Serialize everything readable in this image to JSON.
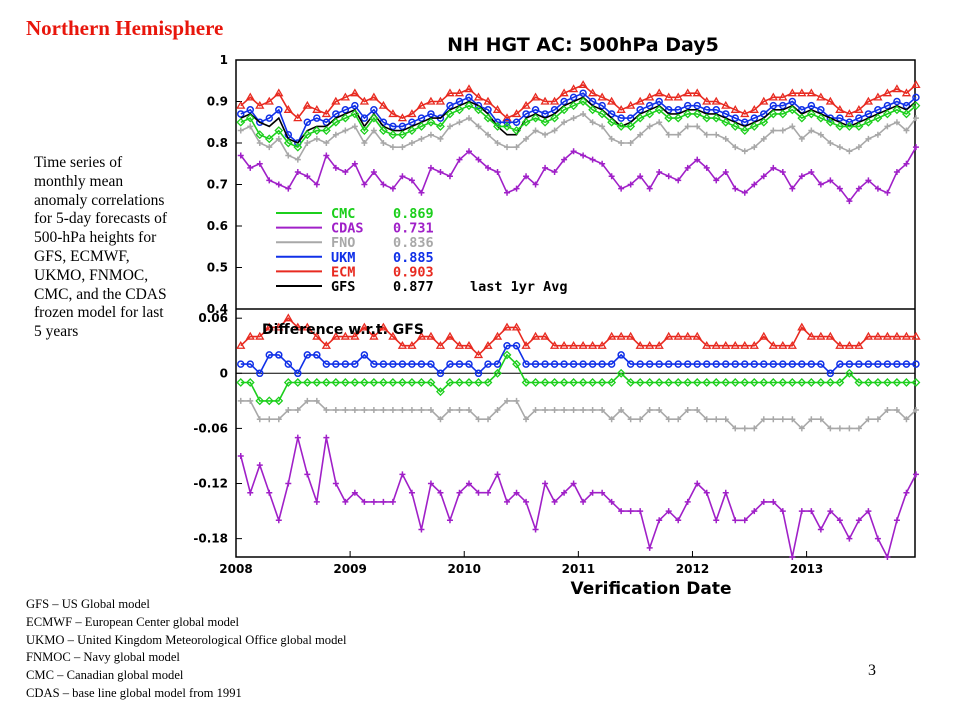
{
  "heading": "Northern Hemisphere",
  "description": "Time series of monthly mean anomaly correlations for 5-day forecasts of 500-hPa heights for GFS, ECMWF, UKMO, FNMOC, CMC, and the CDAS frozen model for last 5 years",
  "model_legend": [
    "GFS – US Global model",
    "ECMWF – European Center global model",
    "UKMO – United Kingdom Meteorological Office global model",
    "FNMOC – Navy global model",
    "CMC – Canadian global model",
    "CDAS – base line global model from 1991"
  ],
  "page_number": "3",
  "chart_data": {
    "type": "line",
    "title": "NH HGT AC: 500hPa Day5",
    "xlabel": "Verification Date",
    "x_ticks": [
      "2008",
      "2009",
      "2010",
      "2011",
      "2012",
      "2013"
    ],
    "x_range": [
      2008.0,
      2013.95
    ],
    "colors": {
      "CMC": "#1ccf1c",
      "CDAS": "#a020c8",
      "FNO": "#a8a8a8",
      "UKM": "#1030e8",
      "ECM": "#e82a20",
      "GFS": "#000000"
    },
    "top_panel": {
      "ylim": [
        0.4,
        1.0
      ],
      "y_ticks": [
        "0.4",
        "0.5",
        "0.6",
        "0.7",
        "0.8",
        "0.9",
        "1"
      ],
      "legend": [
        {
          "name": "CMC",
          "value": "0.869"
        },
        {
          "name": "CDAS",
          "value": "0.731"
        },
        {
          "name": "FNO",
          "value": "0.836"
        },
        {
          "name": "UKM",
          "value": "0.885"
        },
        {
          "name": "ECM",
          "value": "0.903"
        },
        {
          "name": "GFS",
          "value": "0.877",
          "note": "last 1yr Avg"
        }
      ],
      "series": [
        {
          "name": "ECM",
          "values": [
            0.89,
            0.91,
            0.89,
            0.9,
            0.92,
            0.88,
            0.86,
            0.89,
            0.88,
            0.87,
            0.9,
            0.91,
            0.92,
            0.9,
            0.91,
            0.89,
            0.87,
            0.86,
            0.87,
            0.89,
            0.9,
            0.9,
            0.92,
            0.92,
            0.93,
            0.91,
            0.9,
            0.88,
            0.86,
            0.87,
            0.89,
            0.91,
            0.9,
            0.9,
            0.92,
            0.93,
            0.94,
            0.92,
            0.91,
            0.9,
            0.88,
            0.89,
            0.9,
            0.91,
            0.92,
            0.91,
            0.91,
            0.92,
            0.92,
            0.9,
            0.9,
            0.89,
            0.88,
            0.87,
            0.88,
            0.9,
            0.91,
            0.91,
            0.92,
            0.92,
            0.92,
            0.91,
            0.9,
            0.88,
            0.87,
            0.88,
            0.9,
            0.91,
            0.92,
            0.93,
            0.92,
            0.94
          ]
        },
        {
          "name": "UKM",
          "values": [
            0.87,
            0.88,
            0.85,
            0.86,
            0.88,
            0.82,
            0.8,
            0.85,
            0.86,
            0.85,
            0.87,
            0.88,
            0.89,
            0.86,
            0.88,
            0.85,
            0.84,
            0.84,
            0.85,
            0.86,
            0.87,
            0.86,
            0.89,
            0.9,
            0.91,
            0.89,
            0.88,
            0.85,
            0.85,
            0.85,
            0.87,
            0.88,
            0.87,
            0.88,
            0.9,
            0.91,
            0.92,
            0.9,
            0.89,
            0.87,
            0.86,
            0.86,
            0.88,
            0.89,
            0.9,
            0.88,
            0.88,
            0.89,
            0.89,
            0.88,
            0.88,
            0.87,
            0.86,
            0.85,
            0.86,
            0.87,
            0.89,
            0.89,
            0.9,
            0.88,
            0.89,
            0.88,
            0.86,
            0.86,
            0.85,
            0.86,
            0.87,
            0.88,
            0.89,
            0.9,
            0.89,
            0.91
          ]
        },
        {
          "name": "GFS",
          "values": [
            0.86,
            0.87,
            0.85,
            0.84,
            0.86,
            0.81,
            0.8,
            0.83,
            0.84,
            0.84,
            0.86,
            0.87,
            0.88,
            0.84,
            0.87,
            0.84,
            0.83,
            0.83,
            0.84,
            0.85,
            0.86,
            0.86,
            0.88,
            0.89,
            0.9,
            0.89,
            0.87,
            0.84,
            0.82,
            0.82,
            0.86,
            0.87,
            0.86,
            0.87,
            0.89,
            0.9,
            0.91,
            0.89,
            0.88,
            0.86,
            0.84,
            0.85,
            0.87,
            0.88,
            0.89,
            0.87,
            0.87,
            0.88,
            0.88,
            0.87,
            0.87,
            0.86,
            0.85,
            0.84,
            0.85,
            0.86,
            0.88,
            0.88,
            0.89,
            0.87,
            0.88,
            0.87,
            0.86,
            0.85,
            0.84,
            0.85,
            0.86,
            0.87,
            0.88,
            0.89,
            0.88,
            0.9
          ]
        },
        {
          "name": "CMC",
          "values": [
            0.85,
            0.86,
            0.82,
            0.81,
            0.83,
            0.8,
            0.79,
            0.82,
            0.83,
            0.83,
            0.85,
            0.86,
            0.87,
            0.83,
            0.86,
            0.83,
            0.82,
            0.82,
            0.83,
            0.84,
            0.85,
            0.84,
            0.87,
            0.88,
            0.89,
            0.88,
            0.86,
            0.84,
            0.84,
            0.83,
            0.85,
            0.86,
            0.85,
            0.86,
            0.88,
            0.89,
            0.9,
            0.88,
            0.87,
            0.85,
            0.84,
            0.84,
            0.86,
            0.87,
            0.88,
            0.86,
            0.86,
            0.87,
            0.87,
            0.86,
            0.86,
            0.85,
            0.84,
            0.83,
            0.84,
            0.85,
            0.87,
            0.87,
            0.88,
            0.86,
            0.87,
            0.86,
            0.85,
            0.84,
            0.84,
            0.84,
            0.85,
            0.86,
            0.87,
            0.88,
            0.87,
            0.89
          ]
        },
        {
          "name": "FNO",
          "values": [
            0.83,
            0.84,
            0.8,
            0.79,
            0.81,
            0.77,
            0.76,
            0.8,
            0.81,
            0.8,
            0.82,
            0.83,
            0.84,
            0.8,
            0.83,
            0.8,
            0.79,
            0.79,
            0.8,
            0.81,
            0.82,
            0.81,
            0.84,
            0.85,
            0.86,
            0.84,
            0.82,
            0.8,
            0.79,
            0.79,
            0.81,
            0.83,
            0.82,
            0.83,
            0.85,
            0.86,
            0.87,
            0.85,
            0.84,
            0.81,
            0.8,
            0.8,
            0.82,
            0.84,
            0.85,
            0.82,
            0.82,
            0.84,
            0.84,
            0.82,
            0.82,
            0.81,
            0.79,
            0.78,
            0.79,
            0.81,
            0.83,
            0.83,
            0.84,
            0.81,
            0.83,
            0.82,
            0.8,
            0.79,
            0.78,
            0.79,
            0.81,
            0.82,
            0.84,
            0.85,
            0.83,
            0.86
          ]
        },
        {
          "name": "CDAS",
          "values": [
            0.77,
            0.74,
            0.75,
            0.71,
            0.7,
            0.69,
            0.73,
            0.72,
            0.7,
            0.77,
            0.74,
            0.73,
            0.75,
            0.7,
            0.73,
            0.7,
            0.69,
            0.72,
            0.71,
            0.68,
            0.74,
            0.73,
            0.72,
            0.76,
            0.78,
            0.76,
            0.74,
            0.73,
            0.68,
            0.69,
            0.72,
            0.7,
            0.74,
            0.73,
            0.76,
            0.78,
            0.77,
            0.76,
            0.75,
            0.72,
            0.69,
            0.7,
            0.72,
            0.69,
            0.73,
            0.72,
            0.71,
            0.74,
            0.76,
            0.74,
            0.71,
            0.73,
            0.69,
            0.68,
            0.7,
            0.72,
            0.74,
            0.73,
            0.69,
            0.72,
            0.73,
            0.7,
            0.71,
            0.69,
            0.66,
            0.69,
            0.71,
            0.69,
            0.68,
            0.73,
            0.75,
            0.79
          ]
        }
      ]
    },
    "bottom_panel": {
      "title": "Difference w.r.t. GFS",
      "ylim": [
        -0.2,
        0.07
      ],
      "y_ticks": [
        "0.06",
        "0",
        "-0.06",
        "-0.12",
        "-0.18"
      ],
      "series": [
        {
          "name": "ECM",
          "values": [
            0.03,
            0.04,
            0.04,
            0.05,
            0.05,
            0.06,
            0.05,
            0.05,
            0.04,
            0.03,
            0.04,
            0.04,
            0.04,
            0.05,
            0.04,
            0.05,
            0.04,
            0.03,
            0.03,
            0.04,
            0.04,
            0.03,
            0.04,
            0.03,
            0.03,
            0.02,
            0.03,
            0.04,
            0.05,
            0.05,
            0.03,
            0.04,
            0.04,
            0.03,
            0.03,
            0.03,
            0.03,
            0.03,
            0.03,
            0.04,
            0.04,
            0.04,
            0.03,
            0.03,
            0.03,
            0.04,
            0.04,
            0.04,
            0.04,
            0.03,
            0.03,
            0.03,
            0.03,
            0.03,
            0.03,
            0.04,
            0.03,
            0.03,
            0.03,
            0.05,
            0.04,
            0.04,
            0.04,
            0.03,
            0.03,
            0.03,
            0.04,
            0.04,
            0.04,
            0.04,
            0.04,
            0.04
          ]
        },
        {
          "name": "UKM",
          "values": [
            0.01,
            0.01,
            0.0,
            0.02,
            0.02,
            0.01,
            0.0,
            0.02,
            0.02,
            0.01,
            0.01,
            0.01,
            0.01,
            0.02,
            0.01,
            0.01,
            0.01,
            0.01,
            0.01,
            0.01,
            0.01,
            0.0,
            0.01,
            0.01,
            0.01,
            0.0,
            0.01,
            0.01,
            0.03,
            0.03,
            0.01,
            0.01,
            0.01,
            0.01,
            0.01,
            0.01,
            0.01,
            0.01,
            0.01,
            0.01,
            0.02,
            0.01,
            0.01,
            0.01,
            0.01,
            0.01,
            0.01,
            0.01,
            0.01,
            0.01,
            0.01,
            0.01,
            0.01,
            0.01,
            0.01,
            0.01,
            0.01,
            0.01,
            0.01,
            0.01,
            0.01,
            0.01,
            0.0,
            0.01,
            0.01,
            0.01,
            0.01,
            0.01,
            0.01,
            0.01,
            0.01,
            0.01
          ]
        },
        {
          "name": "CMC",
          "values": [
            -0.01,
            -0.01,
            -0.03,
            -0.03,
            -0.03,
            -0.01,
            -0.01,
            -0.01,
            -0.01,
            -0.01,
            -0.01,
            -0.01,
            -0.01,
            -0.01,
            -0.01,
            -0.01,
            -0.01,
            -0.01,
            -0.01,
            -0.01,
            -0.01,
            -0.02,
            -0.01,
            -0.01,
            -0.01,
            -0.01,
            -0.01,
            0.0,
            0.02,
            0.01,
            -0.01,
            -0.01,
            -0.01,
            -0.01,
            -0.01,
            -0.01,
            -0.01,
            -0.01,
            -0.01,
            -0.01,
            0.0,
            -0.01,
            -0.01,
            -0.01,
            -0.01,
            -0.01,
            -0.01,
            -0.01,
            -0.01,
            -0.01,
            -0.01,
            -0.01,
            -0.01,
            -0.01,
            -0.01,
            -0.01,
            -0.01,
            -0.01,
            -0.01,
            -0.01,
            -0.01,
            -0.01,
            -0.01,
            -0.01,
            0.0,
            -0.01,
            -0.01,
            -0.01,
            -0.01,
            -0.01,
            -0.01,
            -0.01
          ]
        },
        {
          "name": "FNO",
          "values": [
            -0.03,
            -0.03,
            -0.05,
            -0.05,
            -0.05,
            -0.04,
            -0.04,
            -0.03,
            -0.03,
            -0.04,
            -0.04,
            -0.04,
            -0.04,
            -0.04,
            -0.04,
            -0.04,
            -0.04,
            -0.04,
            -0.04,
            -0.04,
            -0.04,
            -0.05,
            -0.04,
            -0.04,
            -0.04,
            -0.05,
            -0.05,
            -0.04,
            -0.03,
            -0.03,
            -0.05,
            -0.04,
            -0.04,
            -0.04,
            -0.04,
            -0.04,
            -0.04,
            -0.04,
            -0.04,
            -0.05,
            -0.04,
            -0.05,
            -0.05,
            -0.04,
            -0.04,
            -0.05,
            -0.05,
            -0.04,
            -0.04,
            -0.05,
            -0.05,
            -0.05,
            -0.06,
            -0.06,
            -0.06,
            -0.05,
            -0.05,
            -0.05,
            -0.05,
            -0.06,
            -0.05,
            -0.05,
            -0.06,
            -0.06,
            -0.06,
            -0.06,
            -0.05,
            -0.05,
            -0.04,
            -0.04,
            -0.05,
            -0.04
          ]
        },
        {
          "name": "CDAS",
          "values": [
            -0.09,
            -0.13,
            -0.1,
            -0.13,
            -0.16,
            -0.12,
            -0.07,
            -0.11,
            -0.14,
            -0.07,
            -0.12,
            -0.14,
            -0.13,
            -0.14,
            -0.14,
            -0.14,
            -0.14,
            -0.11,
            -0.13,
            -0.17,
            -0.12,
            -0.13,
            -0.16,
            -0.13,
            -0.12,
            -0.13,
            -0.13,
            -0.11,
            -0.14,
            -0.13,
            -0.14,
            -0.17,
            -0.12,
            -0.14,
            -0.13,
            -0.12,
            -0.14,
            -0.13,
            -0.13,
            -0.14,
            -0.15,
            -0.15,
            -0.15,
            -0.19,
            -0.16,
            -0.15,
            -0.16,
            -0.14,
            -0.12,
            -0.13,
            -0.16,
            -0.13,
            -0.16,
            -0.16,
            -0.15,
            -0.14,
            -0.14,
            -0.15,
            -0.2,
            -0.15,
            -0.15,
            -0.17,
            -0.15,
            -0.16,
            -0.18,
            -0.16,
            -0.15,
            -0.18,
            -0.2,
            -0.16,
            -0.13,
            -0.11
          ]
        }
      ]
    }
  }
}
